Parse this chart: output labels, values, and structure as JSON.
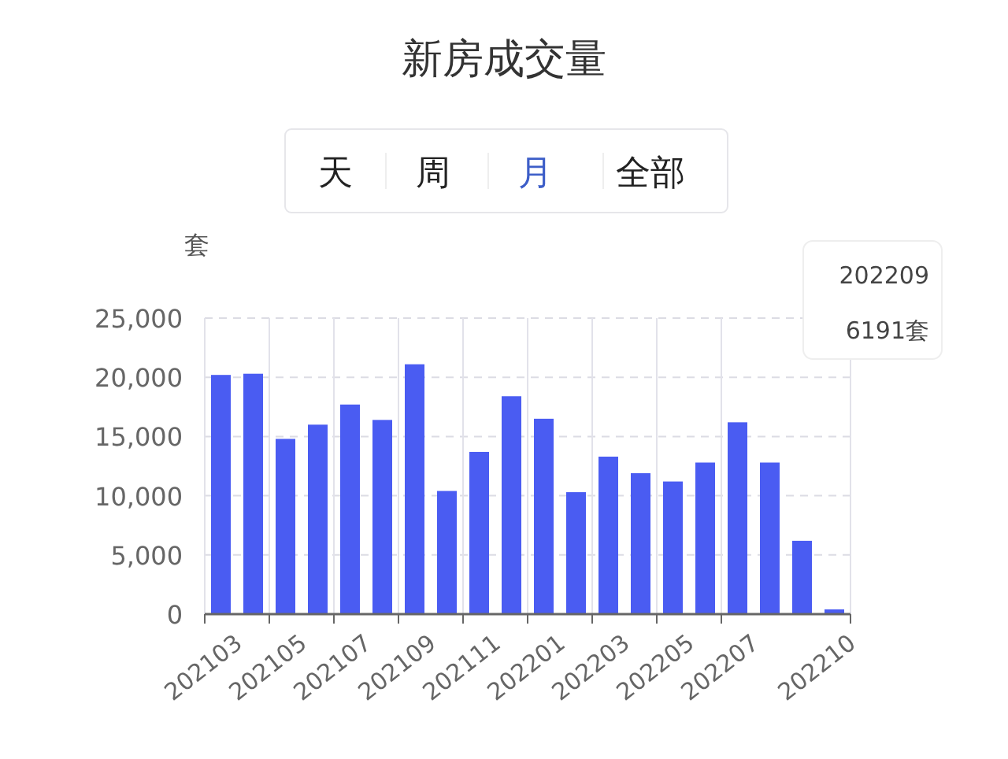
{
  "chart_data": {
    "type": "bar",
    "title": "新房成交量",
    "ylabel": "套",
    "categories": [
      "202103",
      null,
      "202105",
      null,
      "202107",
      null,
      "202109",
      null,
      "202111",
      null,
      "202201",
      null,
      "202203",
      null,
      "202205",
      null,
      "202207",
      null,
      null,
      "202210"
    ],
    "values": [
      20200,
      20300,
      14800,
      16000,
      17700,
      16400,
      21100,
      10400,
      13700,
      18400,
      16500,
      10300,
      13300,
      11900,
      11200,
      12800,
      16200,
      12800,
      6191,
      400
    ],
    "color": "#4a5cf2",
    "ylim": [
      0,
      25000
    ],
    "yticks": [
      {
        "value": 0,
        "label": "0"
      },
      {
        "value": 5000,
        "label": "5,000"
      },
      {
        "value": 10000,
        "label": "10,000"
      },
      {
        "value": 15000,
        "label": "15,000"
      },
      {
        "value": 20000,
        "label": "20,000"
      },
      {
        "value": 25000,
        "label": "25,000"
      }
    ],
    "grid": true,
    "annotations": [
      "天",
      "周",
      "月",
      "全部",
      "202209",
      "6191套"
    ]
  }
}
